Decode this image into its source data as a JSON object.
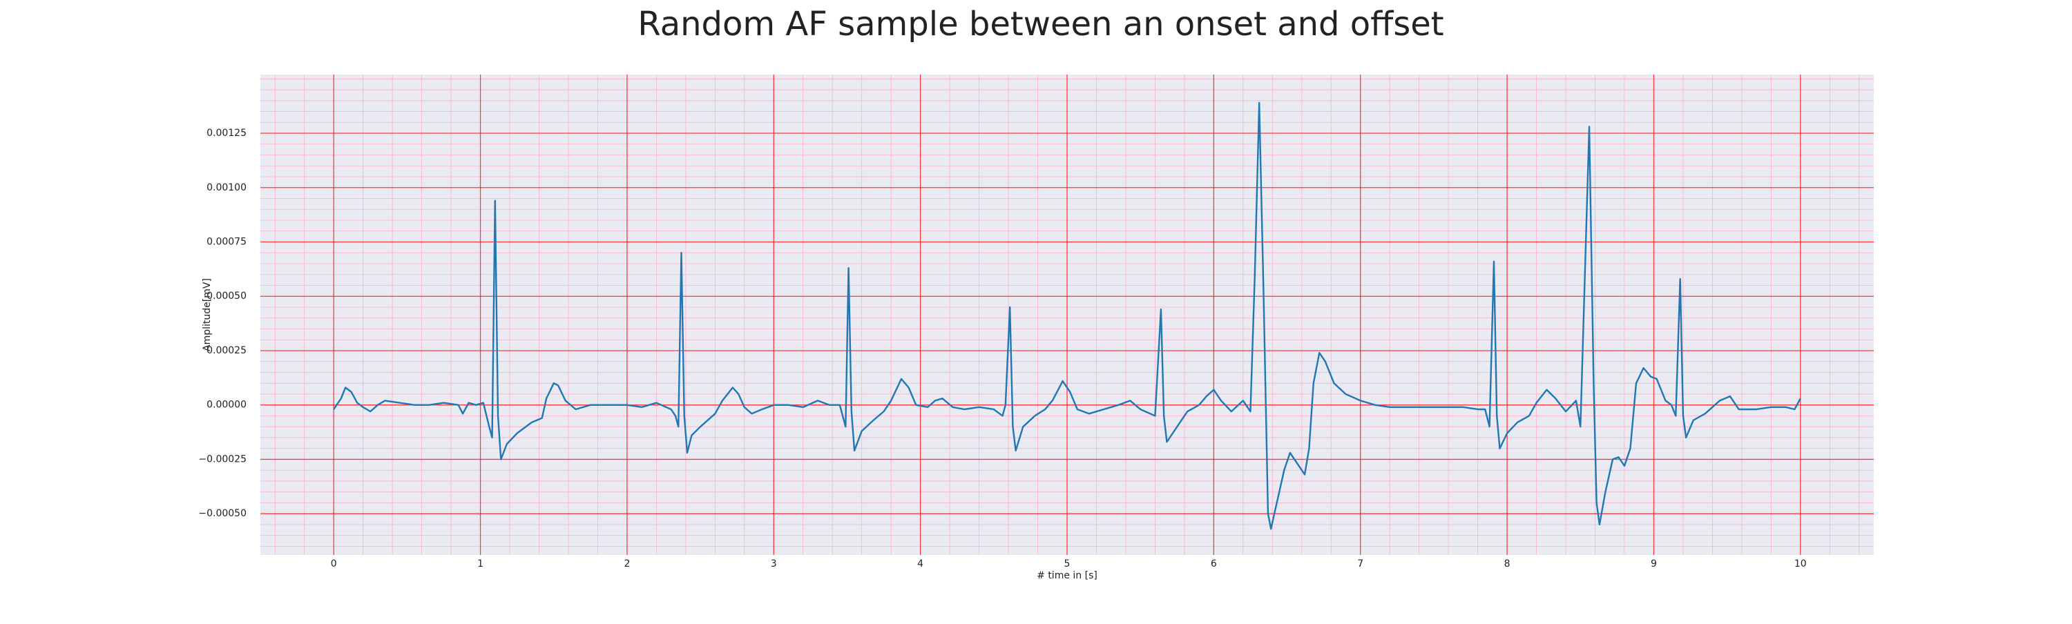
{
  "chart_data": {
    "type": "line",
    "title": "Random AF sample between an onset and offset",
    "xlabel": "# time in [s]",
    "ylabel": "Amplitude[mV]",
    "x": [
      0,
      0.05,
      0.08,
      0.12,
      0.16,
      0.2,
      0.25,
      0.3,
      0.35,
      0.45,
      0.55,
      0.65,
      0.75,
      0.85,
      0.88,
      0.92,
      0.97,
      1.02,
      1.06,
      1.08,
      1.1,
      1.12,
      1.14,
      1.18,
      1.25,
      1.35,
      1.42,
      1.45,
      1.5,
      1.53,
      1.58,
      1.65,
      1.75,
      1.9,
      2.0,
      2.1,
      2.2,
      2.3,
      2.33,
      2.35,
      2.37,
      2.39,
      2.41,
      2.44,
      2.5,
      2.6,
      2.65,
      2.72,
      2.76,
      2.8,
      2.85,
      2.92,
      3.0,
      3.1,
      3.2,
      3.3,
      3.38,
      3.45,
      3.49,
      3.51,
      3.53,
      3.55,
      3.6,
      3.68,
      3.75,
      3.8,
      3.87,
      3.92,
      3.97,
      4.05,
      4.1,
      4.15,
      4.22,
      4.3,
      4.4,
      4.5,
      4.56,
      4.58,
      4.61,
      4.63,
      4.65,
      4.7,
      4.78,
      4.85,
      4.9,
      4.97,
      5.02,
      5.07,
      5.15,
      5.25,
      5.35,
      5.43,
      5.5,
      5.6,
      5.64,
      5.66,
      5.68,
      5.75,
      5.82,
      5.9,
      5.95,
      6.0,
      6.05,
      6.12,
      6.2,
      6.25,
      6.28,
      6.31,
      6.34,
      6.37,
      6.39,
      6.43,
      6.48,
      6.52,
      6.57,
      6.62,
      6.65,
      6.68,
      6.72,
      6.76,
      6.82,
      6.9,
      7.0,
      7.1,
      7.2,
      7.3,
      7.4,
      7.5,
      7.6,
      7.7,
      7.8,
      7.85,
      7.88,
      7.91,
      7.93,
      7.95,
      8.0,
      8.07,
      8.15,
      8.2,
      8.27,
      8.33,
      8.4,
      8.47,
      8.5,
      8.56,
      8.59,
      8.61,
      8.63,
      8.67,
      8.72,
      8.76,
      8.8,
      8.84,
      8.88,
      8.93,
      8.98,
      9.02,
      9.08,
      9.12,
      9.15,
      9.18,
      9.2,
      9.22,
      9.27,
      9.35,
      9.45,
      9.52,
      9.58,
      9.7,
      9.8,
      9.9,
      9.96,
      10.0
    ],
    "series": [
      {
        "color": "#1f77b4",
        "values": [
          -2e-05,
          3e-05,
          8e-05,
          6e-05,
          1e-05,
          -1e-05,
          -3e-05,
          0,
          2e-05,
          1e-05,
          0,
          0,
          1e-05,
          0,
          -4e-05,
          1e-05,
          0,
          1e-05,
          -0.0001,
          -0.00015,
          0.00094,
          -5e-05,
          -0.00025,
          -0.00018,
          -0.00013,
          -8e-05,
          -6e-05,
          3e-05,
          0.0001,
          9e-05,
          2e-05,
          -2e-05,
          0,
          0,
          0,
          -1e-05,
          1e-05,
          -2e-05,
          -5e-05,
          -0.0001,
          0.0007,
          -5e-05,
          -0.00022,
          -0.00014,
          -0.0001,
          -4e-05,
          2e-05,
          8e-05,
          5e-05,
          -1e-05,
          -4e-05,
          -2e-05,
          0,
          0,
          -1e-05,
          2e-05,
          0,
          0,
          -0.0001,
          0.00063,
          -3e-05,
          -0.00021,
          -0.00012,
          -7e-05,
          -3e-05,
          2e-05,
          0.00012,
          8e-05,
          0,
          -1e-05,
          2e-05,
          3e-05,
          -1e-05,
          -2e-05,
          -1e-05,
          -2e-05,
          -5e-05,
          0,
          0.00045,
          -0.0001,
          -0.00021,
          -0.0001,
          -5e-05,
          -2e-05,
          2e-05,
          0.00011,
          6e-05,
          -2e-05,
          -4e-05,
          -2e-05,
          0,
          2e-05,
          -2e-05,
          -5e-05,
          0.00044,
          -5e-05,
          -0.00017,
          -0.0001,
          -3e-05,
          0,
          4e-05,
          7e-05,
          2e-05,
          -3e-05,
          2e-05,
          -3e-05,
          0.0006,
          0.00139,
          0.0005,
          -0.0005,
          -0.00057,
          -0.00045,
          -0.0003,
          -0.00022,
          -0.00027,
          -0.00032,
          -0.0002,
          0.0001,
          0.00024,
          0.0002,
          0.0001,
          5e-05,
          2e-05,
          0,
          -1e-05,
          -1e-05,
          -1e-05,
          -1e-05,
          -1e-05,
          -1e-05,
          -2e-05,
          -2e-05,
          -0.0001,
          0.00066,
          -5e-05,
          -0.0002,
          -0.00013,
          -8e-05,
          -5e-05,
          1e-05,
          7e-05,
          3e-05,
          -3e-05,
          2e-05,
          -0.0001,
          0.00128,
          0.0001,
          -0.00045,
          -0.00055,
          -0.0004,
          -0.00025,
          -0.00024,
          -0.00028,
          -0.0002,
          0.0001,
          0.00017,
          0.00013,
          0.00012,
          2e-05,
          0,
          -5e-05,
          0.00058,
          -5e-05,
          -0.00015,
          -7e-05,
          -4e-05,
          2e-05,
          4e-05,
          -2e-05,
          -2e-05,
          -1e-05,
          -1e-05,
          -2e-05,
          3e-05
        ]
      }
    ],
    "xlim": [
      -0.5,
      10.5
    ],
    "xticks": [
      0,
      1,
      2,
      3,
      4,
      5,
      6,
      7,
      8,
      9,
      10
    ],
    "ylim": [
      -0.00069,
      0.00152
    ],
    "yticks": [
      {
        "value": -0.0005,
        "label": "−0.00050"
      },
      {
        "value": -0.00025,
        "label": "−0.00025"
      },
      {
        "value": 0,
        "label": "0.00000"
      },
      {
        "value": 0.00025,
        "label": "0.00025"
      },
      {
        "value": 0.0005,
        "label": "0.00050"
      },
      {
        "value": 0.00075,
        "label": "0.00075"
      },
      {
        "value": 0.001,
        "label": "0.00100"
      },
      {
        "value": 0.00125,
        "label": "0.00125"
      }
    ],
    "grid": true,
    "minor_grid": true,
    "grid_color": "#ff0000",
    "minor_grid_color": "#ffb0c8",
    "background": "#eaeaf2"
  }
}
